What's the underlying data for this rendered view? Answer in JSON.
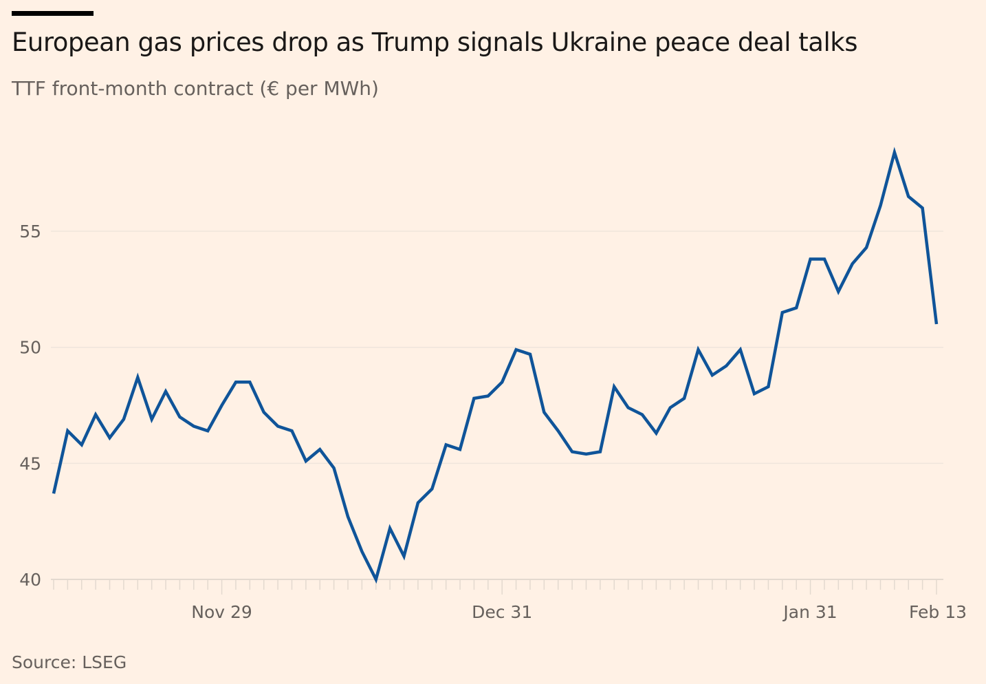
{
  "title": "European gas prices drop as Trump signals Ukraine peace deal talks",
  "subtitle": "TTF front-month contract (€ per MWh)",
  "source": "Source: LSEG",
  "colors": {
    "line": "#0f5499",
    "background": "#fff1e5",
    "grid": "#efe5dc"
  },
  "chart_data": {
    "type": "line",
    "title": "European gas prices drop as Trump signals Ukraine peace deal talks",
    "ylabel": "TTF front-month contract (€ per MWh)",
    "xlabel": "",
    "ylim": [
      40,
      59
    ],
    "yticks": [
      40,
      45,
      50,
      55
    ],
    "ytick_labels": [
      "40",
      "45",
      "50",
      "55"
    ],
    "xtick_labels": [
      {
        "index": 12,
        "label": "Nov 29"
      },
      {
        "index": 32,
        "label": "Dec 31"
      },
      {
        "index": 54,
        "label": "Jan 31"
      },
      {
        "index": 63,
        "label": "Feb 13"
      }
    ],
    "grid": true,
    "series": [
      {
        "name": "TTF front-month",
        "values": [
          43.7,
          46.4,
          45.8,
          47.1,
          46.1,
          46.9,
          48.7,
          46.9,
          48.1,
          47.0,
          46.6,
          46.4,
          47.5,
          48.5,
          48.5,
          47.2,
          46.6,
          46.4,
          45.1,
          45.6,
          44.8,
          42.7,
          41.2,
          40.0,
          42.2,
          41.0,
          43.3,
          43.9,
          45.8,
          45.6,
          47.8,
          47.9,
          48.5,
          49.9,
          49.7,
          47.2,
          46.4,
          45.5,
          45.4,
          45.5,
          48.3,
          47.4,
          47.1,
          46.3,
          47.4,
          47.8,
          49.9,
          48.8,
          49.2,
          49.9,
          48.0,
          48.3,
          51.5,
          51.7,
          53.8,
          53.8,
          52.4,
          53.6,
          54.3,
          56.1,
          58.4,
          56.5,
          56.0,
          51.0
        ]
      }
    ]
  }
}
